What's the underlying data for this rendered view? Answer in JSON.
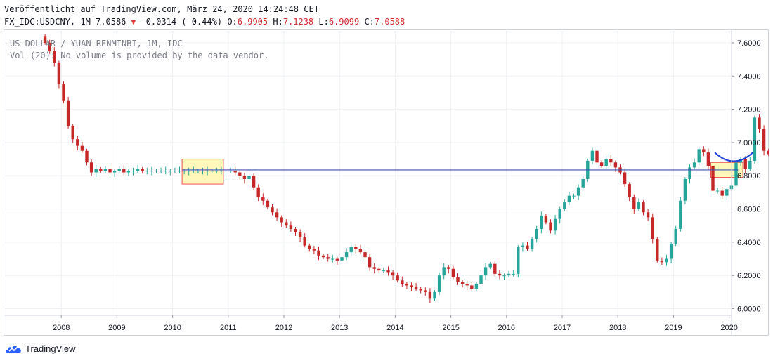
{
  "header": {
    "published": "Veröffentlicht auf TradingView.com, März 24, 2020 14:24:48 CET",
    "symbol_line": "FX_IDC:USDCNY, 1M 7.0586",
    "change": "-0.0314 (-0.44%)",
    "o_label": "O:",
    "o_value": "6.9905",
    "h_label": "H:",
    "h_value": "7.1238",
    "l_label": "L:",
    "l_value": "6.9099",
    "c_label": "C:",
    "c_value": "7.0588",
    "change_arrow_icon": "triangle-down-icon"
  },
  "legend": {
    "series_title": "US DOLLAR / YUAN RENMINBI, 1M, IDC",
    "volume_note": "Vol (20): No volume is provided by the data vendor."
  },
  "footer": {
    "brand": "TradingView",
    "logo_icon": "tradingview-cloud-icon"
  },
  "colors": {
    "up": "#26a69a",
    "down": "#c62828",
    "support_line": "#3f51b5",
    "highlight_fill": "#fff59d",
    "highlight_border": "#ef5350",
    "arc": "#1e40d6",
    "grid": "#eef0f3",
    "axis_text": "#131722"
  },
  "chart_data": {
    "type": "candlestick",
    "interval": "1M",
    "x_axis": {
      "tick_labels": [
        "2008",
        "2009",
        "2010",
        "2011",
        "2012",
        "2013",
        "2014",
        "2015",
        "2016",
        "2017",
        "2018",
        "2019",
        "2020"
      ],
      "range": [
        "2007-09",
        "2020-10"
      ]
    },
    "y_axis": {
      "tick_labels": [
        "7.6000",
        "7.4000",
        "7.2000",
        "7.0000",
        "6.8000",
        "6.6000",
        "6.4000",
        "6.2000",
        "6.0000"
      ],
      "range": [
        5.96,
        7.68
      ],
      "side": "right"
    },
    "grid": true,
    "series": [
      {
        "name": "US DOLLAR / YUAN RENMINBI, 1M, IDC",
        "close": [
          7.6,
          7.55,
          7.48,
          7.35,
          7.25,
          7.1,
          7.02,
          6.98,
          6.95,
          6.88,
          6.82,
          6.84,
          6.83,
          6.84,
          6.82,
          6.83,
          6.84,
          6.82,
          6.83,
          6.83,
          6.84,
          6.83,
          6.83,
          6.83,
          6.83,
          6.83,
          6.83,
          6.83,
          6.83,
          6.83,
          6.83,
          6.83,
          6.83,
          6.83,
          6.83,
          6.83,
          6.83,
          6.83,
          6.83,
          6.83,
          6.83,
          6.82,
          6.8,
          6.78,
          6.8,
          6.73,
          6.67,
          6.65,
          6.61,
          6.58,
          6.55,
          6.52,
          6.5,
          6.48,
          6.46,
          6.43,
          6.38,
          6.36,
          6.35,
          6.32,
          6.31,
          6.3,
          6.3,
          6.29,
          6.31,
          6.34,
          6.37,
          6.36,
          6.34,
          6.31,
          6.25,
          6.24,
          6.23,
          6.23,
          6.22,
          6.2,
          6.17,
          6.15,
          6.14,
          6.13,
          6.12,
          6.11,
          6.1,
          6.06,
          6.1,
          6.2,
          6.25,
          6.24,
          6.19,
          6.16,
          6.15,
          6.14,
          6.12,
          6.15,
          6.2,
          6.25,
          6.27,
          6.21,
          6.2,
          6.2,
          6.21,
          6.21,
          6.37,
          6.38,
          6.36,
          6.42,
          6.48,
          6.56,
          6.52,
          6.47,
          6.54,
          6.6,
          6.64,
          6.68,
          6.68,
          6.73,
          6.78,
          6.89,
          6.95,
          6.88,
          6.86,
          6.9,
          6.88,
          6.85,
          6.82,
          6.75,
          6.67,
          6.6,
          6.64,
          6.58,
          6.55,
          6.42,
          6.29,
          6.28,
          6.3,
          6.39,
          6.48,
          6.65,
          6.78,
          6.85,
          6.88,
          6.96,
          6.94,
          6.86,
          6.71,
          6.71,
          6.68,
          6.72,
          6.74,
          6.88,
          6.9,
          6.84,
          6.89,
          7.15,
          7.08,
          6.95,
          6.93,
          7.04,
          6.99,
          7.06
        ],
        "annotations": [
          {
            "type": "horizontal-line",
            "y": 6.835,
            "x_start": "2010-03",
            "x_end": "2020-02"
          },
          {
            "type": "highlight-box",
            "x_start": "2010-03",
            "x_end": "2010-11",
            "y_low": 6.75,
            "y_high": 6.9
          },
          {
            "type": "highlight-box",
            "x_start": "2019-09",
            "x_end": "2020-03",
            "y_low": 6.79,
            "y_high": 6.88
          },
          {
            "type": "arc",
            "x_start": "2019-10",
            "x_end": "2020-05",
            "y_bottom": 6.89,
            "y_top": 6.94
          }
        ]
      }
    ]
  }
}
